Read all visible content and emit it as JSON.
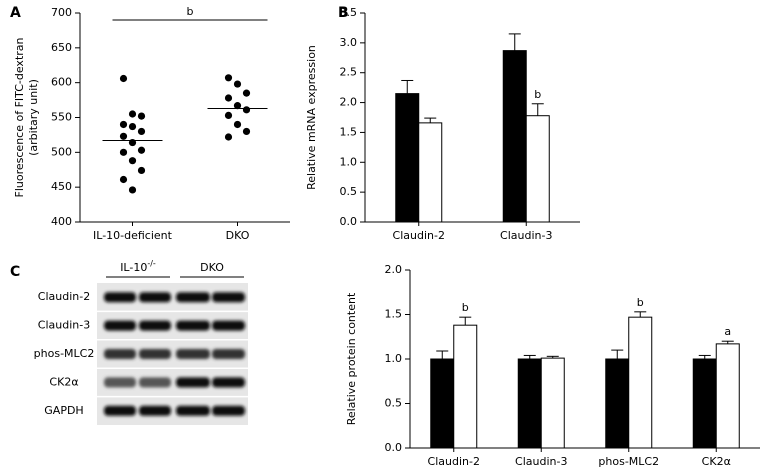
{
  "chart_data": [
    {
      "type": "scatter",
      "panel": "A",
      "ylabel": [
        "Fluorescence of FITC-dextran",
        "(arbitary unit)"
      ],
      "ylim": [
        400,
        700
      ],
      "yticks": [
        400,
        450,
        500,
        550,
        600,
        650,
        700
      ],
      "categories": [
        "IL-10-deficient",
        "DKO"
      ],
      "color": "#000000",
      "series": [
        {
          "values": [
            606,
            555,
            552,
            540,
            537,
            530,
            523,
            514,
            503,
            500,
            488,
            474,
            461,
            446
          ],
          "mean": 517
        },
        {
          "values": [
            607,
            598,
            585,
            578,
            567,
            561,
            553,
            540,
            530,
            522
          ],
          "mean": 563
        }
      ],
      "annotation": "b"
    },
    {
      "type": "bar",
      "panel": "B",
      "ylabel": "Relative mRNA expression",
      "ylim": [
        0,
        3.5
      ],
      "yticks": [
        {
          "value": 0,
          "label": "0.0"
        },
        0.5,
        {
          "value": 1,
          "label": "1.0"
        },
        1.5,
        {
          "value": 2,
          "label": "2.0"
        },
        2.5,
        {
          "value": 3,
          "label": "3.0"
        },
        3.5
      ],
      "categories": [
        "Claudin-2",
        "Claudin-3"
      ],
      "series": [
        {
          "color": "#000000",
          "values": [
            2.15,
            2.87
          ],
          "errors": [
            0.22,
            0.28
          ],
          "annotations": [
            null,
            null
          ]
        },
        {
          "color": "#ffffff",
          "values": [
            1.66,
            1.78
          ],
          "errors": [
            0.08,
            0.2
          ],
          "annotations": [
            null,
            "b"
          ]
        }
      ]
    },
    {
      "type": "bar",
      "panel": "C",
      "ylabel": "Relative protein content",
      "ylim": [
        0,
        2
      ],
      "yticks": [
        {
          "value": 0,
          "label": "0.0"
        },
        0.5,
        {
          "value": 1,
          "label": "1.0"
        },
        1.5,
        {
          "value": 2,
          "label": "2.0"
        }
      ],
      "categories": [
        "Claudin-2",
        "Claudin-3",
        "phos-MLC2",
        "CK2α"
      ],
      "series": [
        {
          "color": "#000000",
          "values": [
            1.0,
            1.0,
            1.0,
            1.0
          ],
          "errors": [
            0.09,
            0.04,
            0.1,
            0.04
          ],
          "annotations": [
            null,
            null,
            null,
            null
          ]
        },
        {
          "color": "#ffffff",
          "values": [
            1.38,
            1.01,
            1.47,
            1.17
          ],
          "errors": [
            0.09,
            0.02,
            0.06,
            0.03
          ],
          "annotations": [
            "b",
            null,
            "b",
            "a"
          ]
        }
      ]
    }
  ],
  "blot": {
    "groups": [
      {
        "text": "IL-10",
        "sup": "-/-"
      },
      {
        "text": "DKO"
      }
    ],
    "rows": [
      "Claudin-2",
      "Claudin-3",
      "phos-MLC2",
      "CK2α",
      "GAPDH"
    ]
  }
}
